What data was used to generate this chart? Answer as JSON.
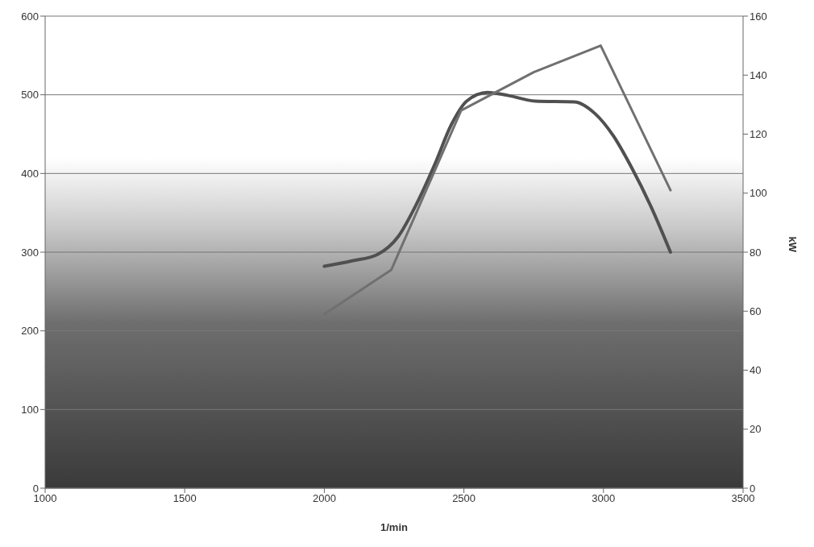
{
  "chart_data": {
    "type": "line",
    "xlabel": "1/min",
    "y2label": "kW",
    "xlim": [
      1000,
      3500
    ],
    "xticks": [
      1000,
      1500,
      2000,
      2500,
      3000,
      3500
    ],
    "ylim": [
      0,
      600
    ],
    "yticks": [
      0,
      100,
      200,
      300,
      400,
      500,
      600
    ],
    "y2lim": [
      0,
      160
    ],
    "y2ticks": [
      0,
      20,
      40,
      60,
      80,
      100,
      120,
      140,
      160
    ],
    "grid": "y",
    "legend": false,
    "marker": "none",
    "line_style": "solid",
    "series": [
      {
        "color": "#505050",
        "x": [
          2000,
          2100,
          2190,
          2265,
          2330,
          2395,
          2455,
          2510,
          2585,
          2660,
          2755,
          2895,
          2970,
          3035,
          3100,
          3170,
          3240
        ],
        "values": [
          282,
          289,
          297,
          320,
          361,
          411,
          462,
          492,
          503,
          499,
          492,
          491,
          476,
          448,
          408,
          358,
          300
        ]
      },
      {
        "color": "#707070",
        "axis": "y2",
        "x": [
          2000,
          2240,
          2490,
          2750,
          2990,
          3240
        ],
        "values": [
          59,
          74,
          128,
          141,
          150,
          101
        ]
      }
    ]
  }
}
